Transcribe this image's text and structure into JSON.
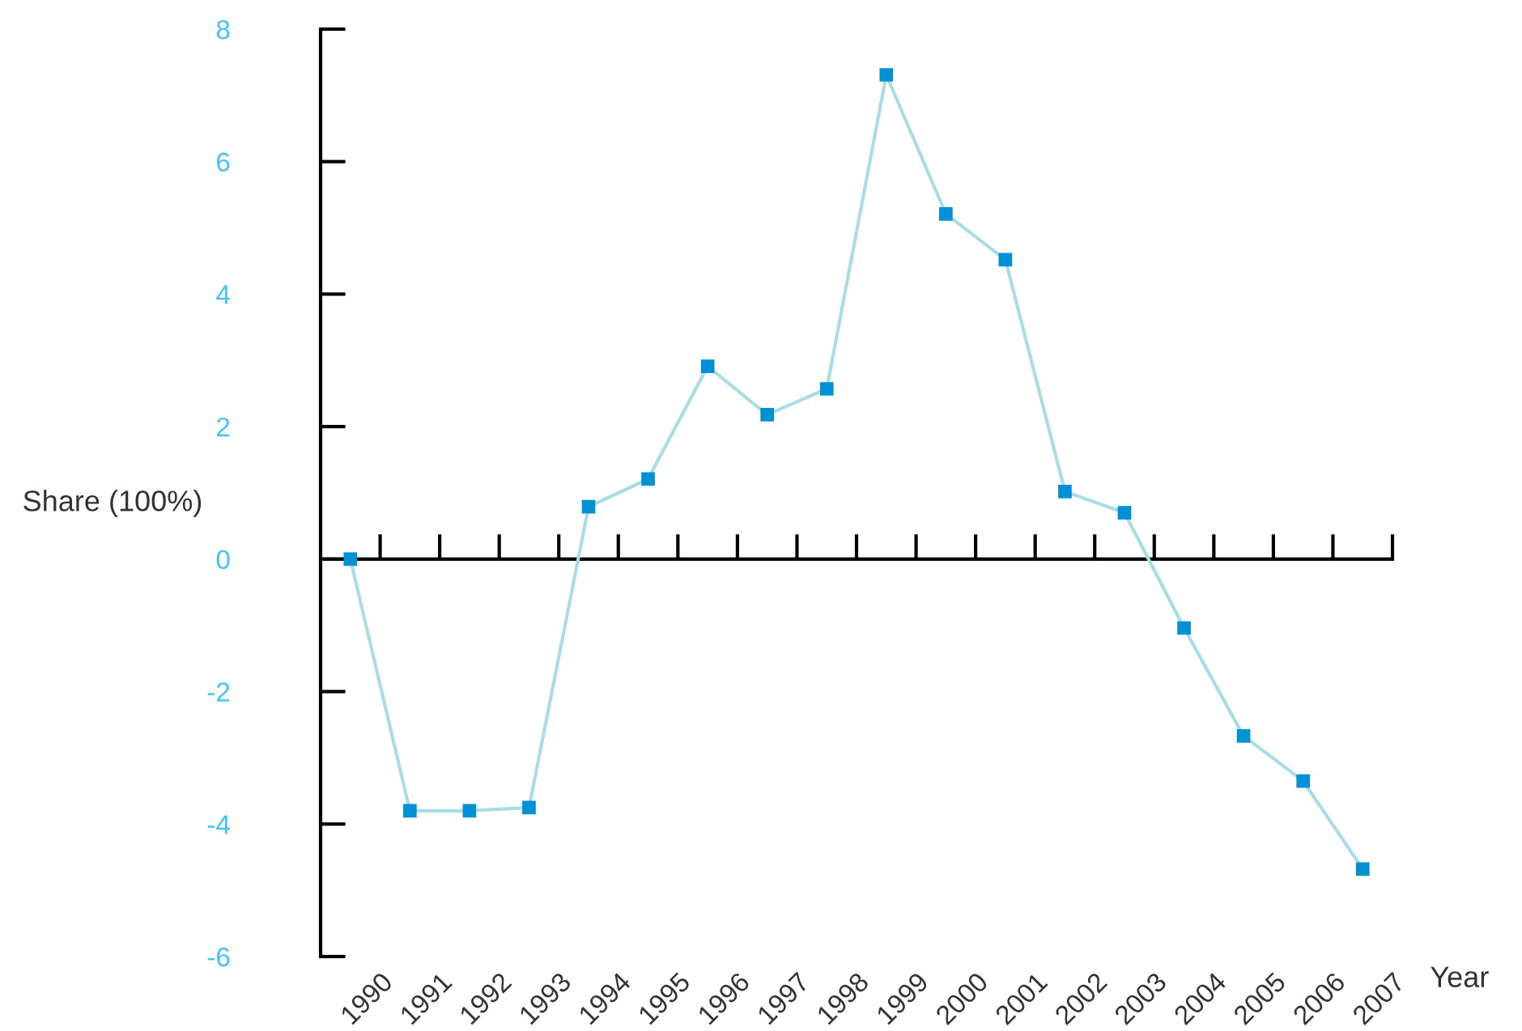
{
  "chart_data": {
    "type": "line",
    "xlabel": "Year",
    "ylabel": "Share (100%)",
    "x": [
      1989.5,
      1990.5,
      1991.5,
      1992.5,
      1993.5,
      1994.5,
      1995.5,
      1996.5,
      1997.5,
      1998.5,
      1999.5,
      2000.5,
      2001.5,
      2002.5,
      2003.5,
      2004.5,
      2005.5,
      2006.5
    ],
    "series": [
      {
        "color": "#0091d5",
        "values": [
          0,
          -3.8,
          -3.8,
          -3.75,
          0.79,
          1.21,
          2.91,
          2.18,
          2.57,
          7.31,
          5.21,
          4.52,
          1.02,
          0.7,
          -1.04,
          -2.67,
          -3.35,
          -4.68
        ]
      }
    ],
    "xlim": [
      1989,
      2007
    ],
    "xticks": [
      1990,
      1991,
      1992,
      1993,
      1994,
      1995,
      1996,
      1997,
      1998,
      1999,
      2000,
      2001,
      2002,
      2003,
      2004,
      2005,
      2006,
      2007
    ],
    "ylim": [
      -6,
      8
    ],
    "yticks": [
      -6,
      -4,
      -2,
      0,
      2,
      4,
      6,
      8
    ],
    "marker": "square",
    "line_style": "solid",
    "legend": false
  }
}
